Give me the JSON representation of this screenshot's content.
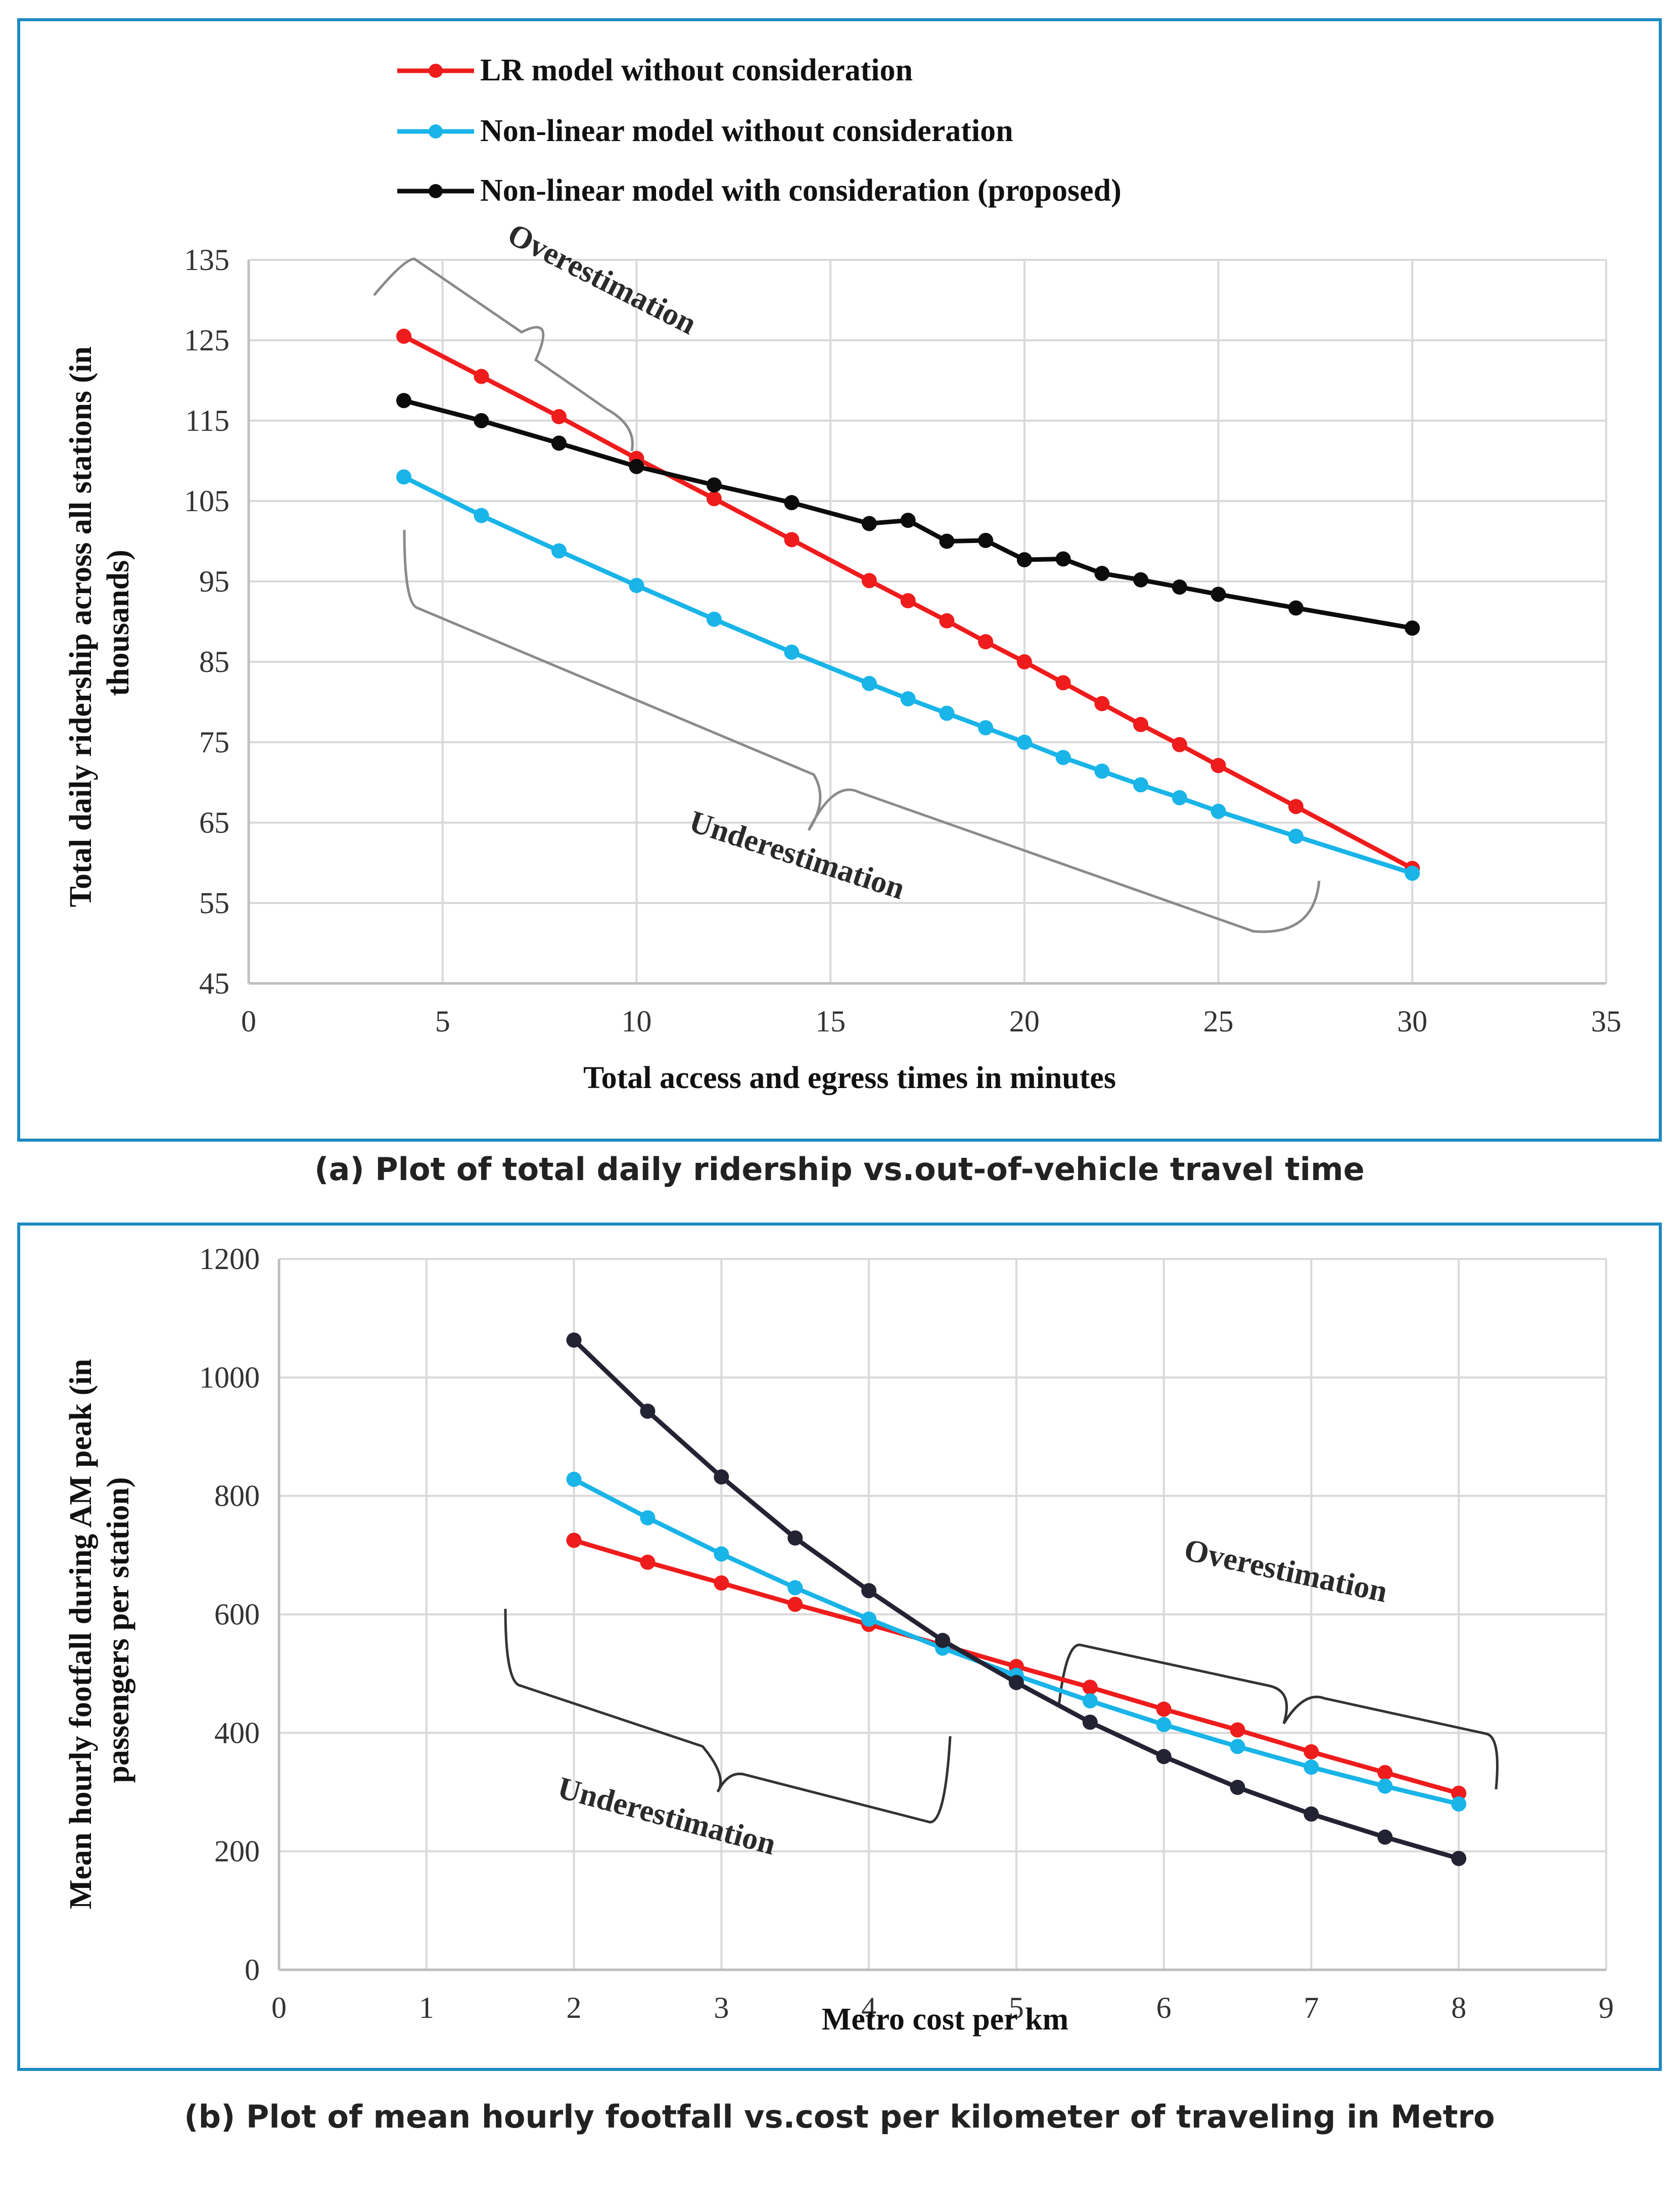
{
  "captions": {
    "a": "(a) Plot of total daily ridership vs.out-of-vehicle travel time",
    "b": "(b) Plot of mean hourly footfall vs.cost per kilometer of traveling in Metro"
  },
  "colors": {
    "lr": "#ee1c1c",
    "nl": "#19b4e8",
    "prop": "#0c0c0c",
    "prop_b": "#232333",
    "grid": "#d9d9d9",
    "frame": "#1d8ac4"
  },
  "chart_data": [
    {
      "type": "line",
      "title": "",
      "xlabel": "Total access and egress times in minutes",
      "ylabel": "Total daily ridership across all stations (in thousands)",
      "xlim": [
        0,
        35
      ],
      "ylim": [
        45,
        135
      ],
      "xticks": [
        0,
        5,
        10,
        15,
        20,
        25,
        30,
        35
      ],
      "yticks": [
        45,
        55,
        65,
        75,
        85,
        95,
        105,
        115,
        125,
        135
      ],
      "legend": [
        "LR model without consideration",
        "Non-linear model without consideration",
        "Non-linear model with consideration (proposed)"
      ],
      "annotations": [
        "Overestimation",
        "Underestimation"
      ],
      "series": [
        {
          "name": "LR model without consideration",
          "color": "#ee1c1c",
          "x": [
            4,
            6,
            8,
            10,
            12,
            14,
            16,
            17,
            18,
            19,
            20,
            21,
            22,
            23,
            24,
            25,
            27,
            30
          ],
          "y": [
            125.5,
            120.5,
            115.5,
            110.3,
            105.3,
            100.2,
            95.1,
            92.6,
            90.1,
            87.5,
            85.0,
            82.4,
            79.8,
            77.2,
            74.7,
            72.1,
            67.0,
            59.3
          ]
        },
        {
          "name": "Non-linear model without consideration",
          "color": "#19b4e8",
          "x": [
            4,
            6,
            8,
            10,
            12,
            14,
            16,
            17,
            18,
            19,
            20,
            21,
            22,
            23,
            24,
            25,
            27,
            30
          ],
          "y": [
            108.0,
            103.2,
            98.8,
            94.5,
            90.3,
            86.2,
            82.3,
            80.4,
            78.6,
            76.8,
            75.0,
            73.1,
            71.4,
            69.7,
            68.1,
            66.4,
            63.3,
            58.7
          ]
        },
        {
          "name": "Non-linear model with consideration (proposed)",
          "color": "#0c0c0c",
          "x": [
            4,
            6,
            8,
            10,
            12,
            14,
            16,
            17,
            18,
            19,
            20,
            21,
            22,
            23,
            24,
            25,
            27,
            30
          ],
          "y": [
            117.5,
            115.0,
            112.2,
            109.3,
            107.0,
            104.8,
            102.2,
            102.6,
            100.0,
            100.1,
            97.7,
            97.8,
            96.0,
            95.2,
            94.3,
            93.4,
            91.7,
            89.2
          ]
        }
      ]
    },
    {
      "type": "line",
      "title": "",
      "xlabel": "Metro cost per km",
      "ylabel": "Mean hourly footfall during AM peak (in passengers per station)",
      "xlim": [
        0,
        9
      ],
      "ylim": [
        0,
        1200
      ],
      "xticks": [
        0,
        1,
        2,
        3,
        4,
        5,
        6,
        7,
        8,
        9
      ],
      "yticks": [
        0,
        200,
        400,
        600,
        800,
        1000,
        1200
      ],
      "annotations": [
        "Overestimation",
        "Underestimation"
      ],
      "series": [
        {
          "name": "LR model without consideration",
          "color": "#ee1c1c",
          "x": [
            2,
            2.5,
            3,
            3.5,
            4,
            4.5,
            5,
            5.5,
            6,
            6.5,
            7,
            7.5,
            8
          ],
          "y": [
            725,
            688,
            653,
            617,
            583,
            548,
            512,
            477,
            440,
            405,
            368,
            333,
            298
          ]
        },
        {
          "name": "Non-linear model without consideration",
          "color": "#19b4e8",
          "x": [
            2,
            2.5,
            3,
            3.5,
            4,
            4.5,
            5,
            5.5,
            6,
            6.5,
            7,
            7.5,
            8
          ],
          "y": [
            828,
            763,
            702,
            645,
            592,
            543,
            497,
            454,
            414,
            377,
            342,
            310,
            280
          ]
        },
        {
          "name": "Non-linear model with consideration (proposed)",
          "color": "#232333",
          "x": [
            2,
            2.5,
            3,
            3.5,
            4,
            4.5,
            5,
            5.5,
            6,
            6.5,
            7,
            7.5,
            8
          ],
          "y": [
            1063,
            943,
            832,
            729,
            640,
            556,
            485,
            418,
            360,
            308,
            263,
            224,
            188
          ]
        }
      ]
    }
  ]
}
